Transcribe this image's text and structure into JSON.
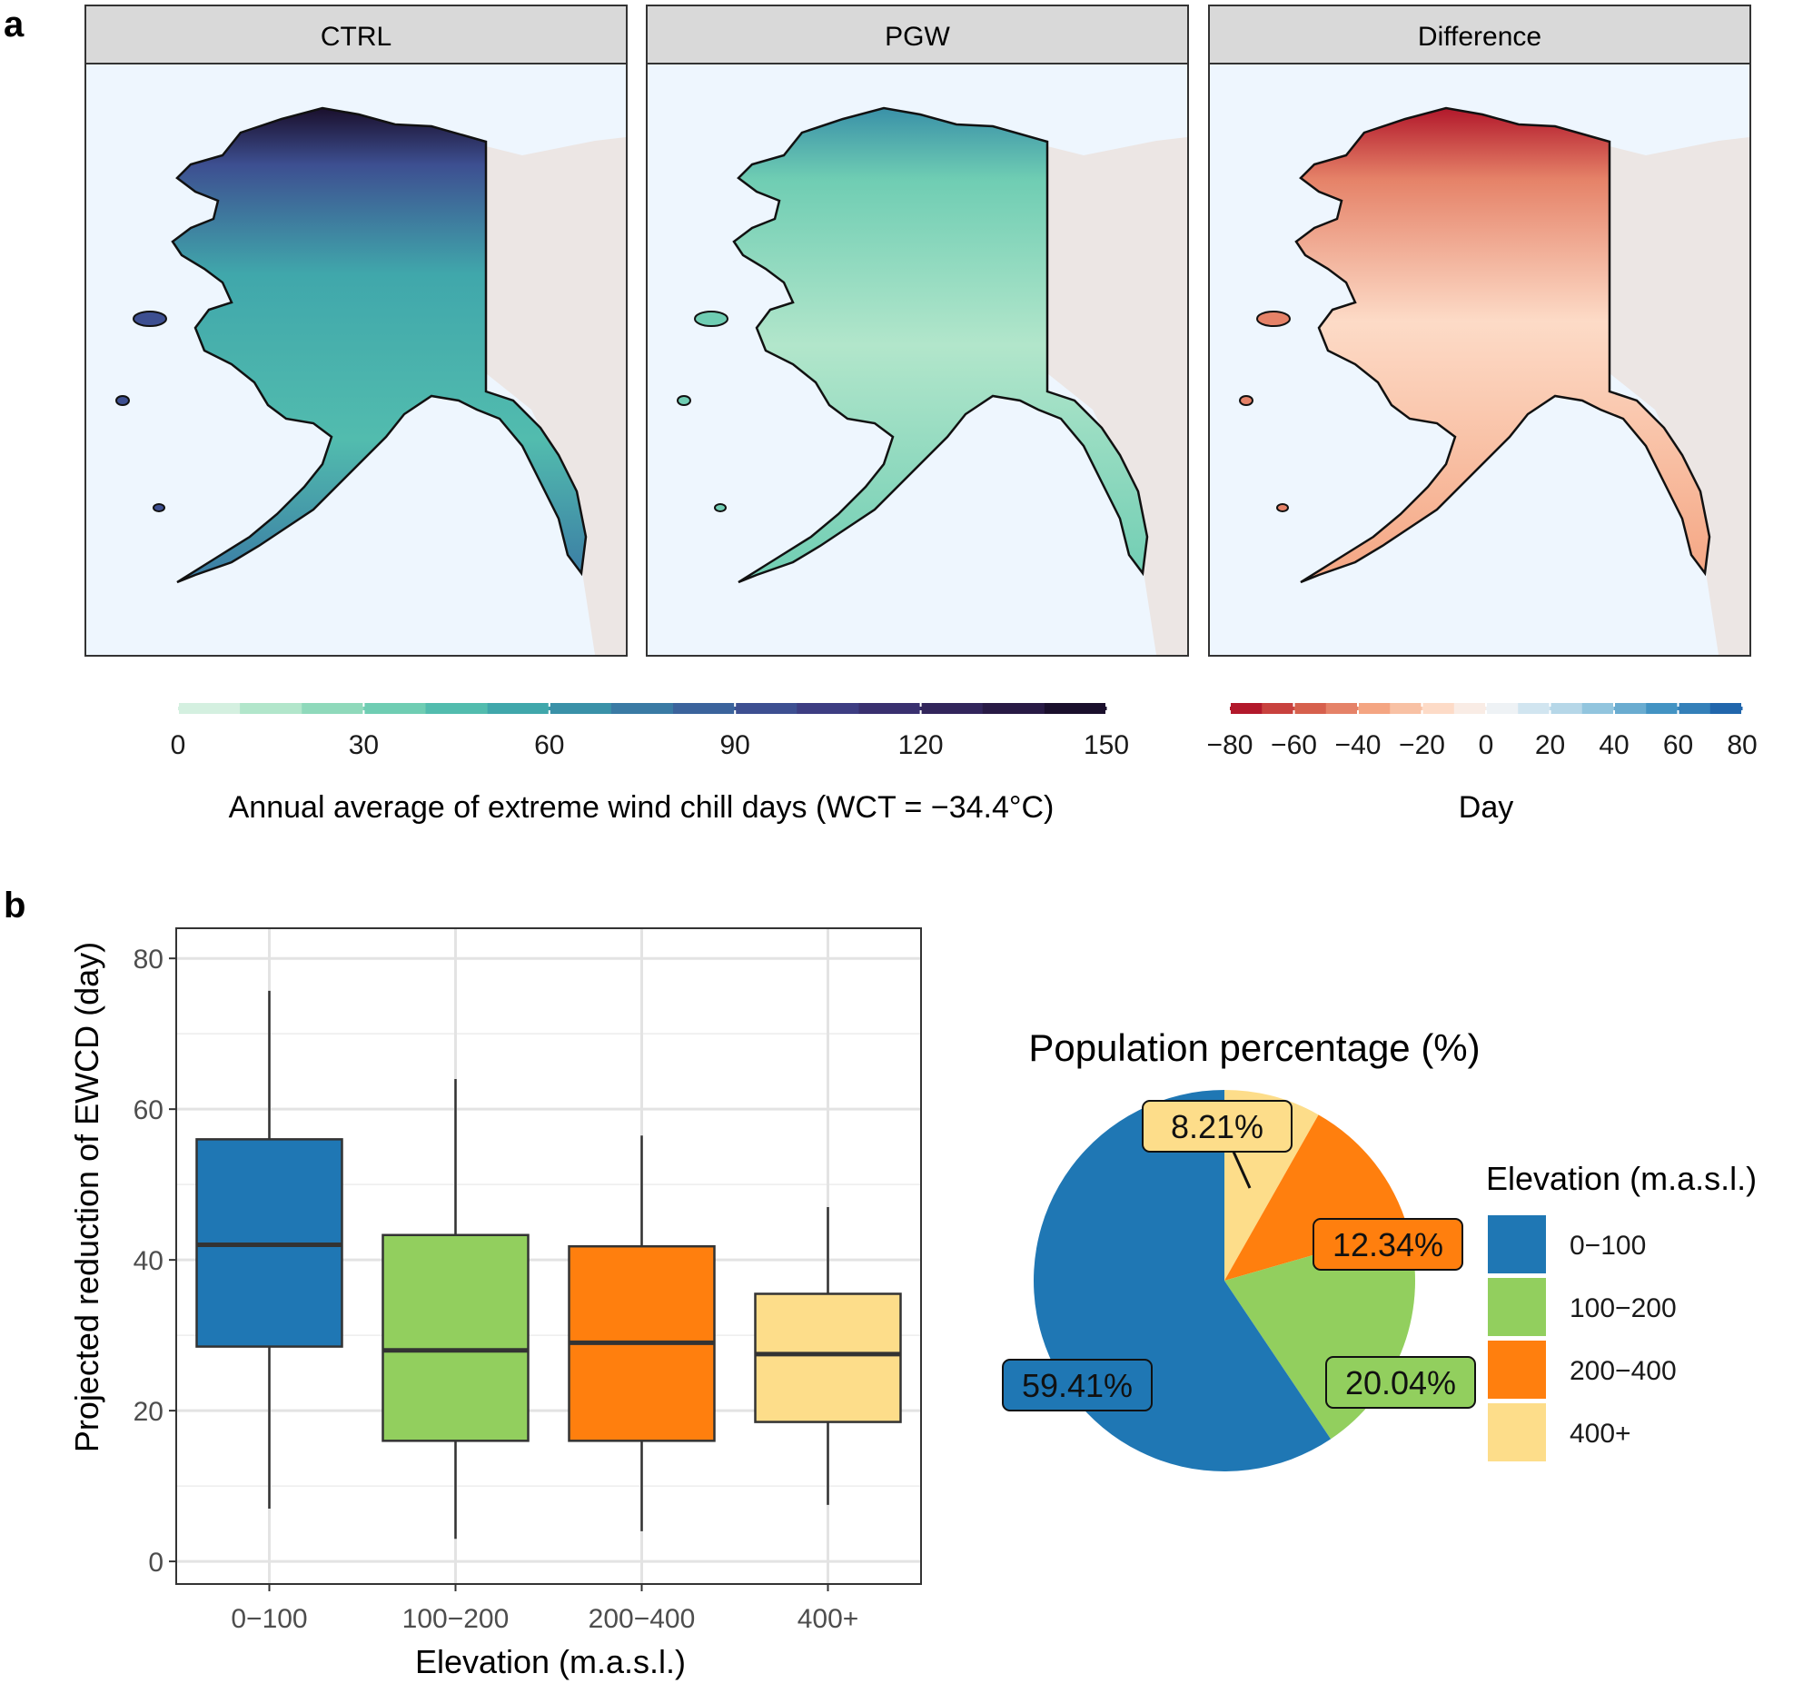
{
  "panel_a": {
    "label": "a",
    "facets": [
      "CTRL",
      "PGW",
      "Difference"
    ],
    "colorbar_main": {
      "ticks": [
        "0",
        "30",
        "60",
        "90",
        "120",
        "150"
      ],
      "range": [
        0,
        150
      ],
      "steps": 15,
      "colors": [
        "#d4f0e0",
        "#b2e6cb",
        "#8fd9bb",
        "#6fcdb3",
        "#52bcae",
        "#40a7ab",
        "#3a91a8",
        "#3a7aa4",
        "#3b639c",
        "#3d4f91",
        "#3d3d82",
        "#39306f",
        "#32255b",
        "#281a45",
        "#1a0f2c"
      ],
      "title": "Annual average of extreme wind chill days (WCT = −34.4°C)"
    },
    "colorbar_diff": {
      "ticks": [
        "−80",
        "−60",
        "−40",
        "−20",
        "0",
        "20",
        "40",
        "60",
        "80"
      ],
      "range": [
        -80,
        80
      ],
      "steps": 16,
      "colors": [
        "#b2182b",
        "#c8413e",
        "#d6604d",
        "#e58268",
        "#f4a582",
        "#f8c1a4",
        "#fddbc7",
        "#f9ece5",
        "#eef2f5",
        "#d1e5f0",
        "#b6d7e8",
        "#92c5de",
        "#6aacd0",
        "#4393c3",
        "#3480b9",
        "#2166ac"
      ],
      "title": "Day"
    },
    "ocean_color": "#eef6fe",
    "canada_color": "#ece6e4"
  },
  "panel_b": {
    "label": "b",
    "chart_data": [
      {
        "type": "box",
        "categories": [
          "0−100",
          "100−200",
          "200−400",
          "400+"
        ],
        "boxes": [
          {
            "whisker_low": 7,
            "q1": 28.5,
            "median": 42,
            "q3": 56,
            "whisker_high": 75.7,
            "color": "#1f77b4"
          },
          {
            "whisker_low": 3,
            "q1": 16,
            "median": 28,
            "q3": 43.3,
            "whisker_high": 64,
            "color": "#92cf5e"
          },
          {
            "whisker_low": 4,
            "q1": 16,
            "median": 29,
            "q3": 41.8,
            "whisker_high": 56.5,
            "color": "#ff7f0e"
          },
          {
            "whisker_low": 7.5,
            "q1": 18.5,
            "median": 27.5,
            "q3": 35.5,
            "whisker_high": 47,
            "color": "#fddd8a"
          }
        ],
        "yticks": [
          "0",
          "20",
          "40",
          "60",
          "80"
        ],
        "ylim": [
          -3,
          84
        ],
        "xlabel": "Elevation (m.a.s.l.)",
        "ylabel": "Projected reduction of EWCD (day)",
        "grid": true
      },
      {
        "type": "pie",
        "title": "Population percentage (%)",
        "slices": [
          {
            "label": "8.21%",
            "value": 8.21,
            "color": "#fddd8a"
          },
          {
            "label": "12.34%",
            "value": 12.34,
            "color": "#ff7f0e"
          },
          {
            "label": "20.04%",
            "value": 20.04,
            "color": "#92cf5e"
          },
          {
            "label": "59.41%",
            "value": 59.41,
            "color": "#1f77b4"
          }
        ],
        "legend": {
          "title": "Elevation (m.a.s.l.)",
          "entries": [
            {
              "label": "0−100",
              "color": "#1f77b4"
            },
            {
              "label": "100−200",
              "color": "#92cf5e"
            },
            {
              "label": "200−400",
              "color": "#ff7f0e"
            },
            {
              "label": "400+",
              "color": "#fddd8a"
            }
          ]
        }
      }
    ]
  }
}
